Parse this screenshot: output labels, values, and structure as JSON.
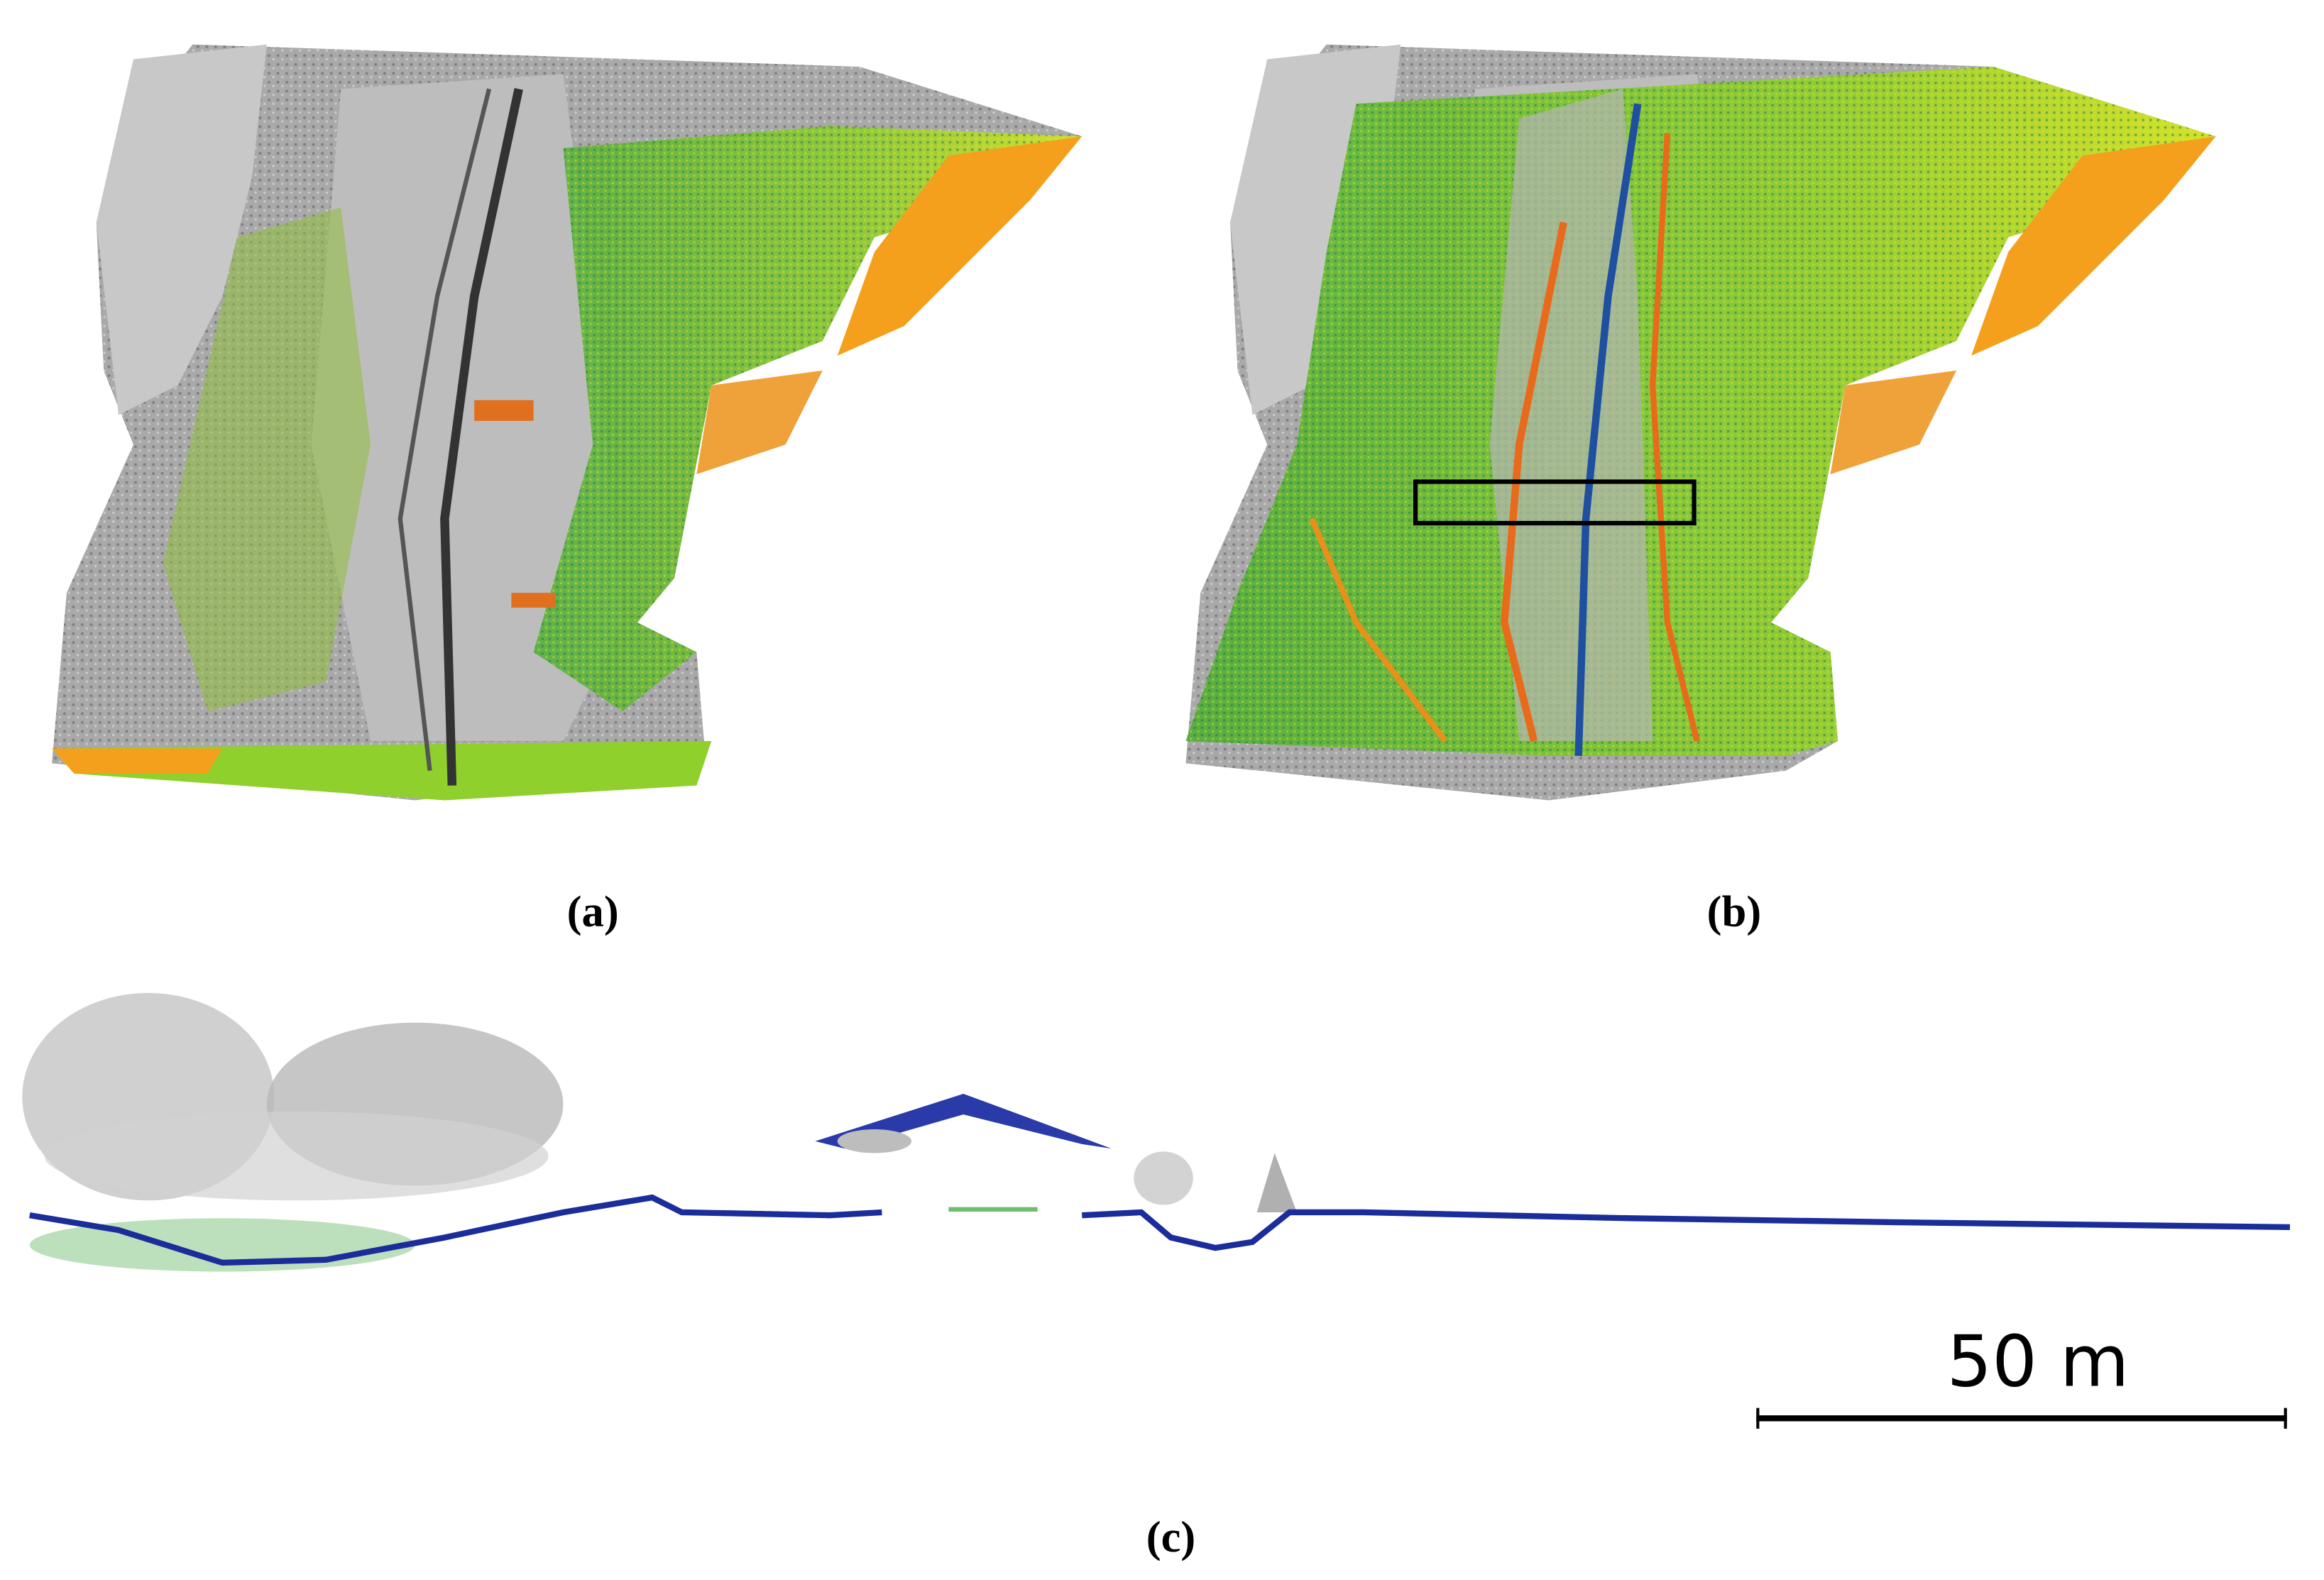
{
  "panels": [
    {
      "label": "(a)"
    },
    {
      "label": "(b)"
    },
    {
      "label": "(c)",
      "scale_bar": "50 m"
    }
  ]
}
